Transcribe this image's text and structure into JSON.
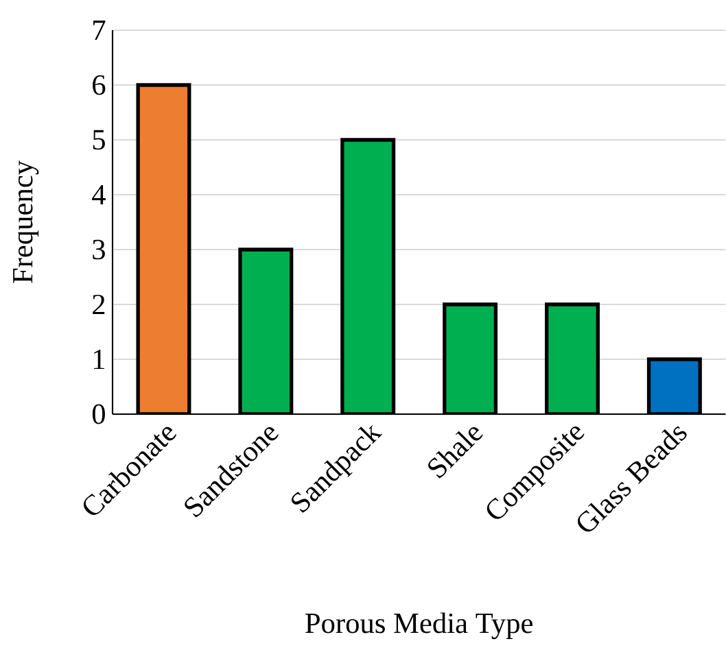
{
  "chart_data": {
    "type": "bar",
    "xlabel": "Porous Media Type",
    "ylabel": "Frequency",
    "categories": [
      "Carbonate",
      "Sandstone",
      "Sandpack",
      "Shale",
      "Composite",
      "Glass Beads"
    ],
    "values": [
      6,
      3,
      5,
      2,
      2,
      1
    ],
    "colors": [
      "#ed7d31",
      "#00b050",
      "#00b050",
      "#00b050",
      "#00b050",
      "#0070c0"
    ],
    "ylim": [
      0,
      7
    ],
    "yticks": [
      0,
      1,
      2,
      3,
      4,
      5,
      6,
      7
    ],
    "grid": "y"
  }
}
